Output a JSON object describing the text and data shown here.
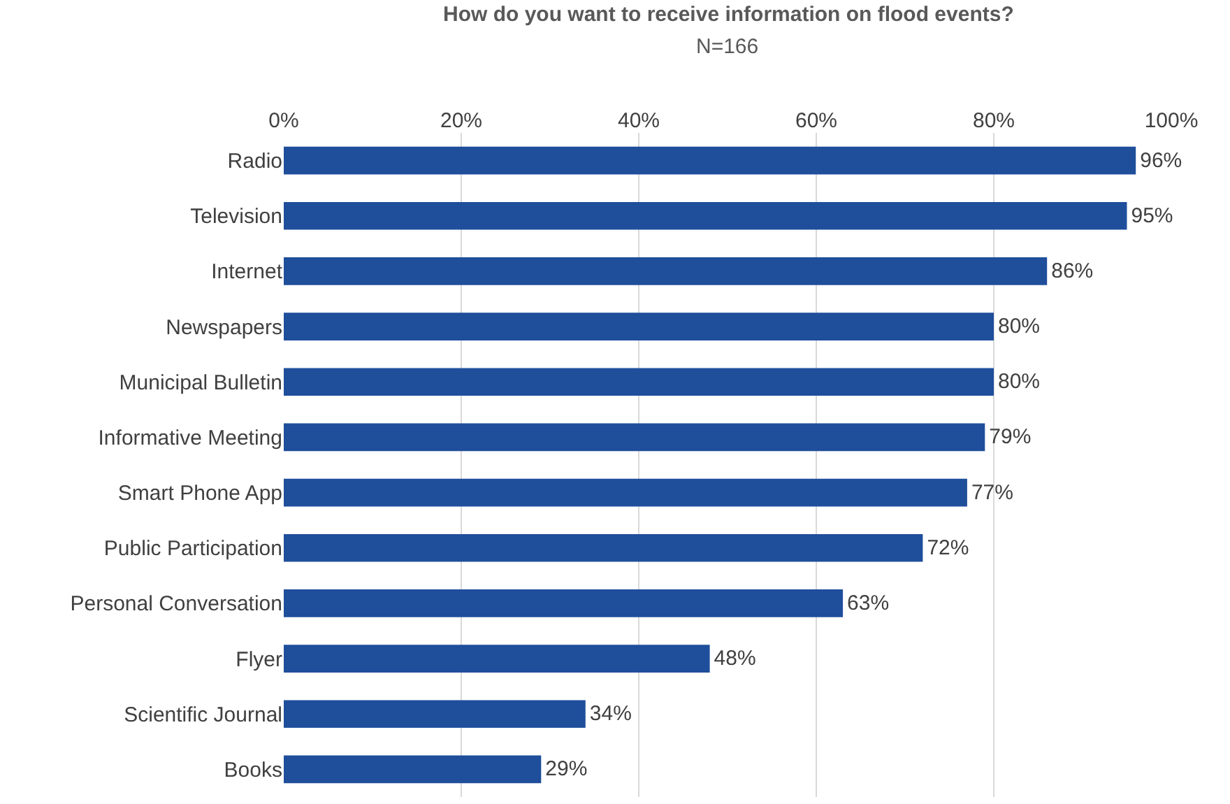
{
  "chart_data": {
    "type": "bar",
    "orientation": "horizontal",
    "title": "How do you want to receive information on flood events?",
    "subtitle": "N=166",
    "categories": [
      "Radio",
      "Television",
      "Internet",
      "Newspapers",
      "Municipal Bulletin",
      "Informative Meeting",
      "Smart Phone App",
      "Public Participation",
      "Personal Conversation",
      "Flyer",
      "Scientific Journal",
      "Books"
    ],
    "values": [
      96,
      95,
      86,
      80,
      80,
      79,
      77,
      72,
      63,
      48,
      34,
      29
    ],
    "value_labels": [
      "96%",
      "95%",
      "86%",
      "80%",
      "80%",
      "79%",
      "77%",
      "72%",
      "63%",
      "48%",
      "34%",
      "29%"
    ],
    "color": "#1f4e9b",
    "xlim": [
      0,
      100
    ],
    "xticks": [
      {
        "value": 0,
        "label": "0%"
      },
      {
        "value": 20,
        "label": "20%"
      },
      {
        "value": 40,
        "label": "40%"
      },
      {
        "value": 60,
        "label": "60%"
      },
      {
        "value": 80,
        "label": "80%"
      },
      {
        "value": 100,
        "label": "100%"
      }
    ],
    "grid": "x"
  }
}
